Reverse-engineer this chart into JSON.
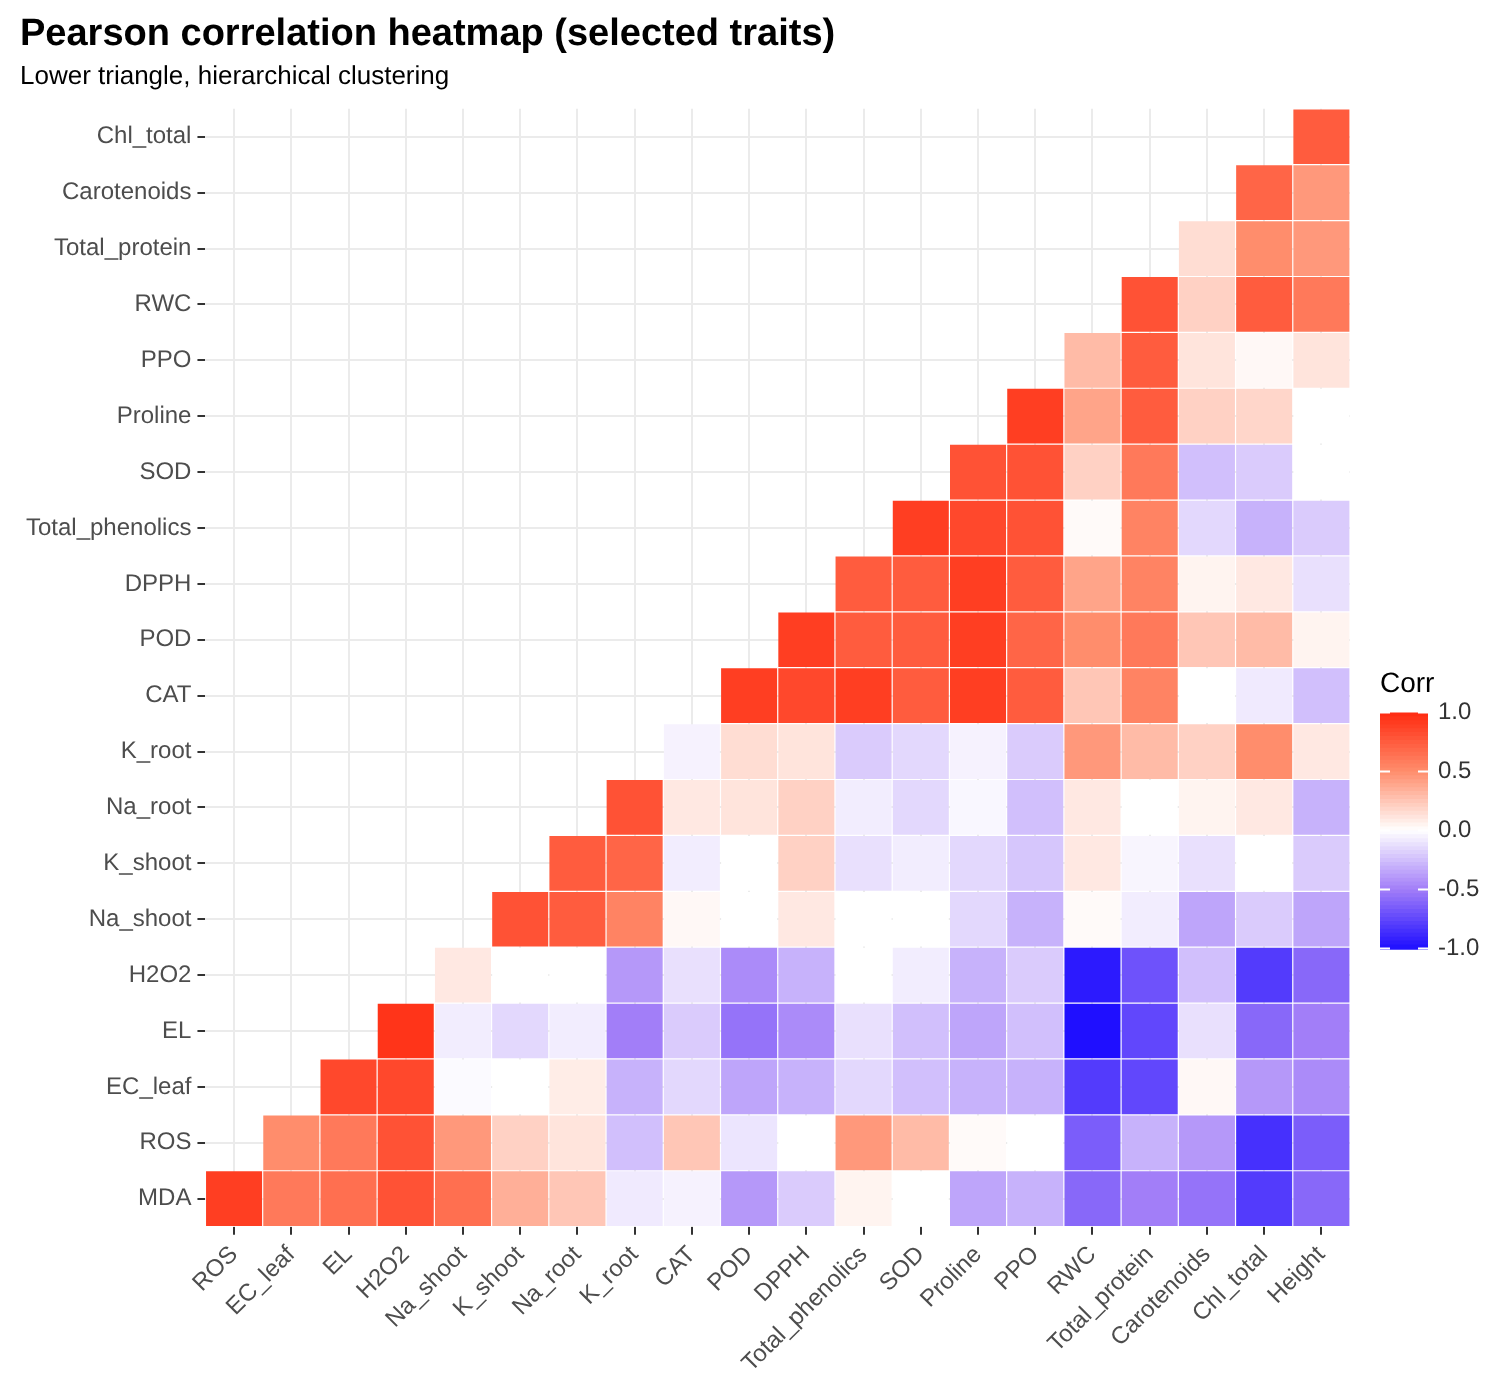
{
  "chart_data": {
    "type": "heatmap",
    "title": "Pearson correlation heatmap (selected traits)",
    "subtitle": "Lower triangle, hierarchical clustering",
    "clabel": "Corr",
    "grid": true,
    "categories": [
      "ROS",
      "EC_leaf",
      "EL",
      "H2O2",
      "Na_shoot",
      "K_shoot",
      "Na_root",
      "K_root",
      "CAT",
      "POD",
      "DPPH",
      "Total_phenolics",
      "SOD",
      "Proline",
      "PPO",
      "RWC",
      "Total_protein",
      "Carotenoids",
      "Chl_total",
      "Height"
    ],
    "y_categories": [
      "Chl_total",
      "Carotenoids",
      "Total_protein",
      "RWC",
      "PPO",
      "Proline",
      "SOD",
      "Total_phenolics",
      "DPPH",
      "POD",
      "CAT",
      "K_root",
      "Na_root",
      "K_shoot",
      "Na_shoot",
      "H2O2",
      "EL",
      "EC_leaf",
      "ROS",
      "MDA"
    ],
    "clim": [
      -1,
      1
    ],
    "cticks": [
      {
        "value": -1,
        "label": "-1.0"
      },
      {
        "value": -0.5,
        "label": "-0.5"
      },
      {
        "value": 0,
        "label": "0.0"
      },
      {
        "value": 0.5,
        "label": "0.5"
      },
      {
        "value": 1,
        "label": "1.0"
      }
    ],
    "cells": [
      [
        null,
        null,
        null,
        null,
        null,
        null,
        null,
        null,
        null,
        null,
        null,
        null,
        null,
        null,
        null,
        null,
        null,
        null,
        null,
        0.75
      ],
      [
        null,
        null,
        null,
        null,
        null,
        null,
        null,
        null,
        null,
        null,
        null,
        null,
        null,
        null,
        null,
        null,
        null,
        null,
        0.7,
        0.45
      ],
      [
        null,
        null,
        null,
        null,
        null,
        null,
        null,
        null,
        null,
        null,
        null,
        null,
        null,
        null,
        null,
        null,
        null,
        0.15,
        0.5,
        0.45
      ],
      [
        null,
        null,
        null,
        null,
        null,
        null,
        null,
        null,
        null,
        null,
        null,
        null,
        null,
        null,
        null,
        null,
        0.8,
        0.2,
        0.75,
        0.6
      ],
      [
        null,
        null,
        null,
        null,
        null,
        null,
        null,
        null,
        null,
        null,
        null,
        null,
        null,
        null,
        null,
        0.3,
        0.75,
        0.12,
        0.03,
        0.12
      ],
      [
        null,
        null,
        null,
        null,
        null,
        null,
        null,
        null,
        null,
        null,
        null,
        null,
        null,
        null,
        0.9,
        0.4,
        0.75,
        0.2,
        0.18,
        0.0
      ],
      [
        null,
        null,
        null,
        null,
        null,
        null,
        null,
        null,
        null,
        null,
        null,
        null,
        null,
        0.8,
        0.8,
        0.2,
        0.6,
        -0.25,
        -0.2,
        0.0
      ],
      [
        null,
        null,
        null,
        null,
        null,
        null,
        null,
        null,
        null,
        null,
        null,
        null,
        0.9,
        0.85,
        0.8,
        0.02,
        0.55,
        -0.15,
        -0.3,
        -0.2
      ],
      [
        null,
        null,
        null,
        null,
        null,
        null,
        null,
        null,
        null,
        null,
        null,
        0.75,
        0.75,
        0.9,
        0.75,
        0.4,
        0.55,
        0.05,
        0.1,
        -0.12
      ],
      [
        null,
        null,
        null,
        null,
        null,
        null,
        null,
        null,
        null,
        null,
        0.9,
        0.75,
        0.75,
        0.9,
        0.7,
        0.5,
        0.6,
        0.25,
        0.3,
        0.05
      ],
      [
        null,
        null,
        null,
        null,
        null,
        null,
        null,
        null,
        null,
        0.9,
        0.85,
        0.9,
        0.75,
        0.9,
        0.75,
        0.25,
        0.55,
        0.0,
        -0.08,
        -0.25
      ],
      [
        null,
        null,
        null,
        null,
        null,
        null,
        null,
        null,
        -0.05,
        0.15,
        0.12,
        -0.2,
        -0.15,
        -0.05,
        -0.2,
        0.45,
        0.3,
        0.2,
        0.5,
        0.1
      ],
      [
        null,
        null,
        null,
        null,
        null,
        null,
        null,
        0.8,
        0.1,
        0.12,
        0.2,
        -0.07,
        -0.15,
        -0.03,
        -0.25,
        0.1,
        0.0,
        0.05,
        0.1,
        -0.3
      ],
      [
        null,
        null,
        null,
        null,
        null,
        null,
        0.75,
        0.7,
        -0.07,
        0.0,
        0.2,
        -0.12,
        -0.07,
        -0.15,
        -0.22,
        0.1,
        -0.04,
        -0.12,
        0.0,
        -0.2
      ],
      [
        null,
        null,
        null,
        null,
        null,
        0.8,
        0.75,
        0.55,
        0.03,
        0.0,
        0.1,
        0.0,
        0.0,
        -0.15,
        -0.3,
        0.02,
        -0.07,
        -0.35,
        -0.2,
        -0.35
      ],
      [
        null,
        null,
        null,
        null,
        0.1,
        0.0,
        0.0,
        -0.4,
        -0.12,
        -0.45,
        -0.3,
        0.0,
        -0.07,
        -0.3,
        -0.2,
        -0.95,
        -0.7,
        -0.25,
        -0.8,
        -0.6
      ],
      [
        null,
        null,
        null,
        0.95,
        -0.07,
        -0.15,
        -0.07,
        -0.5,
        -0.2,
        -0.55,
        -0.45,
        -0.12,
        -0.25,
        -0.35,
        -0.25,
        -1.0,
        -0.75,
        -0.12,
        -0.6,
        -0.5
      ],
      [
        null,
        null,
        0.85,
        0.85,
        -0.02,
        0.0,
        0.08,
        -0.3,
        -0.15,
        -0.35,
        -0.3,
        -0.15,
        -0.25,
        -0.3,
        -0.3,
        -0.8,
        -0.75,
        0.03,
        -0.4,
        -0.45
      ],
      [
        null,
        0.5,
        0.6,
        0.8,
        0.45,
        0.2,
        0.12,
        -0.25,
        0.25,
        -0.1,
        0.0,
        0.45,
        0.3,
        0.02,
        0.0,
        -0.65,
        -0.3,
        -0.4,
        -0.85,
        -0.65
      ],
      [
        0.9,
        0.6,
        0.65,
        0.8,
        0.65,
        0.35,
        0.25,
        -0.08,
        -0.05,
        -0.4,
        -0.2,
        0.05,
        0.0,
        -0.35,
        -0.3,
        -0.6,
        -0.5,
        -0.55,
        -0.8,
        -0.6
      ]
    ]
  }
}
